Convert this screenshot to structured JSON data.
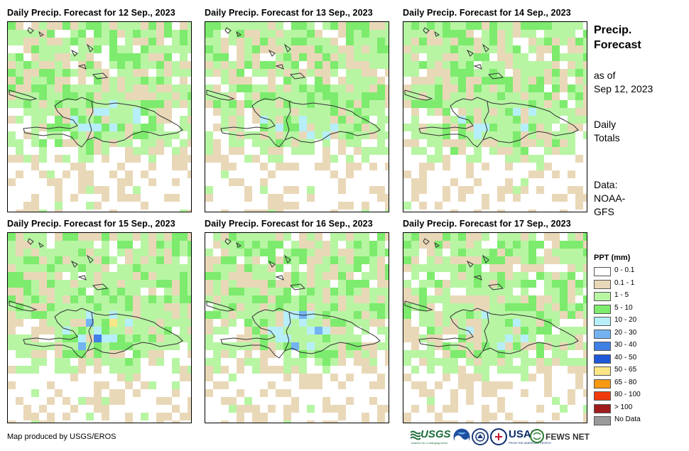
{
  "panels": [
    {
      "title": "Daily Precip. Forecast for 12 Sep., 2023",
      "seed": 11,
      "bias": [
        0.55,
        0.35,
        0.07,
        0.0,
        0.0,
        0.0,
        0.0,
        0.0
      ]
    },
    {
      "title": "Daily Precip. Forecast for 13 Sep., 2023",
      "seed": 23,
      "bias": [
        0.45,
        0.35,
        0.08,
        0.0,
        0.0,
        0.0,
        0.0,
        0.0
      ]
    },
    {
      "title": "Daily Precip. Forecast for 14 Sep., 2023",
      "seed": 37,
      "bias": [
        0.45,
        0.3,
        0.06,
        0.04,
        0.02,
        0.01,
        0.0,
        0.0
      ]
    },
    {
      "title": "Daily Precip. Forecast for 15 Sep., 2023",
      "seed": 41,
      "bias": [
        0.35,
        0.25,
        0.12,
        0.08,
        0.06,
        0.04,
        0.03,
        0.01
      ]
    },
    {
      "title": "Daily Precip. Forecast for 16 Sep., 2023",
      "seed": 53,
      "bias": [
        0.4,
        0.3,
        0.1,
        0.05,
        0.02,
        0.0,
        0.0,
        0.0
      ]
    },
    {
      "title": "Daily Precip. Forecast for 17 Sep., 2023",
      "seed": 67,
      "bias": [
        0.45,
        0.3,
        0.06,
        0.02,
        0.01,
        0.0,
        0.0,
        0.0
      ]
    }
  ],
  "side": {
    "title_line1": "Precip.",
    "title_line2": "Forecast",
    "asof_line1": "as of",
    "asof_line2": "Sep 12, 2023",
    "totals_line1": "Daily",
    "totals_line2": "Totals",
    "data_line1": "Data:",
    "data_line2": "NOAA-",
    "data_line3": "GFS"
  },
  "legend": {
    "title": "PPT (mm)",
    "items": [
      {
        "label": "0 - 0.1",
        "color": "#ffffff"
      },
      {
        "label": "0.1 - 1",
        "color": "#e9d8b8"
      },
      {
        "label": "1 - 5",
        "color": "#b7f5a3"
      },
      {
        "label": "5 - 10",
        "color": "#7deb6d"
      },
      {
        "label": "10 - 20",
        "color": "#b6eff9"
      },
      {
        "label": "20 - 30",
        "color": "#74b3f2"
      },
      {
        "label": "30 - 40",
        "color": "#3f7fe6"
      },
      {
        "label": "40 - 50",
        "color": "#1e58d8"
      },
      {
        "label": "50 - 65",
        "color": "#fbe686"
      },
      {
        "label": "65 - 80",
        "color": "#f79a12"
      },
      {
        "label": "80 - 100",
        "color": "#f03a0b"
      },
      {
        "label": "> 100",
        "color": "#a01c1c"
      },
      {
        "label": "No Data",
        "color": "#9a9a9a"
      }
    ]
  },
  "credit": "Map produced by USGS/EROS",
  "logos": {
    "usgs": "USGS",
    "usgs_tagline": "science for a changing world",
    "usaid": "USAID",
    "usaid_tagline": "FROM THE AMERICAN PEOPLE",
    "fews": "FEWS NET"
  }
}
